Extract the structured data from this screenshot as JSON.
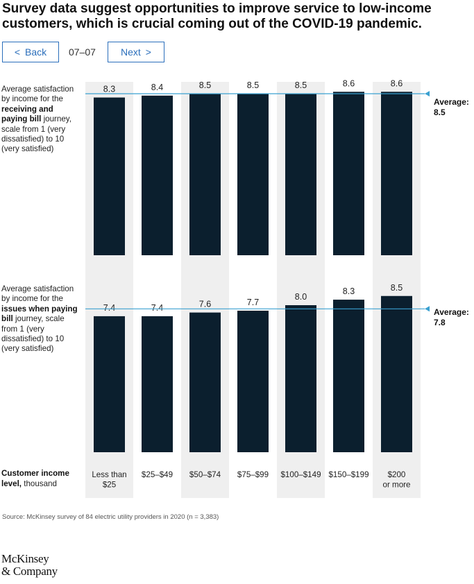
{
  "header": {
    "title": "Survey data suggest opportunities to improve service to low-income customers, which is crucial coming out of the COVID-19 pandemic."
  },
  "nav": {
    "back_label": "Back",
    "next_label": "Next",
    "page_indicator": "07–07",
    "back_icon": "chevron-left-icon",
    "next_icon": "chevron-right-icon"
  },
  "panels": [
    {
      "label_pre": "Average satisfaction by income for the ",
      "label_bold": "receiving and paying bill",
      "label_post": " journey, scale from 1 (very dissatisfied) to 10 (very satisfied)"
    },
    {
      "label_pre": "Average satisfaction by income for the ",
      "label_bold": "issues when paying bill",
      "label_post": " journey, scale from 1 (very dissatisfied) to 10 (very satisfied)"
    }
  ],
  "x_axis": {
    "label_bold": "Customer income level,",
    "label_post": " thousand"
  },
  "chart_data": [
    {
      "type": "bar",
      "categories": [
        "Less than $25",
        "$25–$49",
        "$50–$74",
        "$75–$99",
        "$100–$149",
        "$150–$199",
        "$200 or more"
      ],
      "values": [
        8.3,
        8.4,
        8.5,
        8.5,
        8.5,
        8.6,
        8.6
      ],
      "value_labels": [
        "8.3",
        "8.4",
        "8.5",
        "8.5",
        "8.5",
        "8.6",
        "8.6"
      ],
      "average": 8.5,
      "average_label": "Average:",
      "average_value_label": "8.5",
      "ylim": [
        0,
        10
      ]
    },
    {
      "type": "bar",
      "categories": [
        "Less than $25",
        "$25–$49",
        "$50–$74",
        "$75–$99",
        "$100–$149",
        "$150–$199",
        "$200 or more"
      ],
      "values": [
        7.4,
        7.4,
        7.6,
        7.7,
        8.0,
        8.3,
        8.5
      ],
      "value_labels": [
        "7.4",
        "7.4",
        "7.6",
        "7.7",
        "8.0",
        "8.3",
        "8.5"
      ],
      "average": 7.8,
      "average_label": "Average:",
      "average_value_label": "7.8",
      "ylim": [
        0,
        10
      ]
    }
  ],
  "category_labels": [
    [
      "Less than",
      "$25"
    ],
    [
      "$25–$49"
    ],
    [
      "$50–$74"
    ],
    [
      "$75–$99"
    ],
    [
      "$100–$149"
    ],
    [
      "$150–$199"
    ],
    [
      "$200",
      "or more"
    ]
  ],
  "colors": {
    "bar": "#0b1f2e",
    "average_line": "#3aa0d0",
    "column_band": "#efefef",
    "nav_accent": "#2a6ebb"
  },
  "footer": {
    "source": "Source: McKinsey survey of 84 electric utility providers in 2020 (n = 3,383)",
    "logo_line1": "McKinsey",
    "logo_line2": "& Company"
  }
}
